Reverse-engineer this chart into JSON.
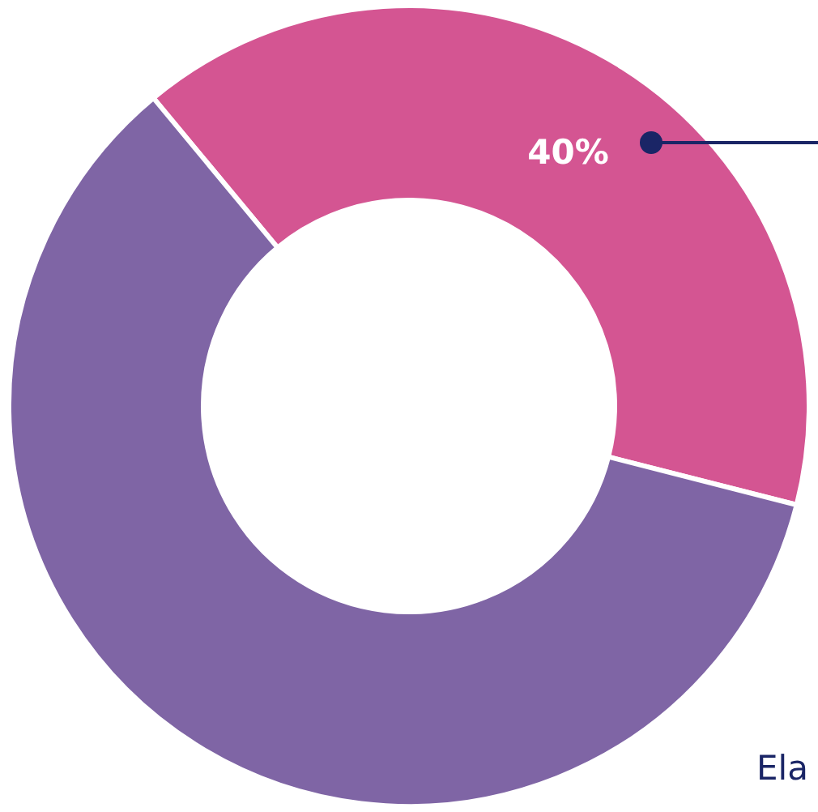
{
  "chart_data": {
    "type": "donut",
    "categories": [
      null,
      null
    ],
    "values": [
      40,
      60
    ],
    "colors": [
      "#d45592",
      "#7f65a5"
    ],
    "value_labels": [
      "40%",
      null
    ],
    "annotations": [
      "Ela"
    ]
  }
}
